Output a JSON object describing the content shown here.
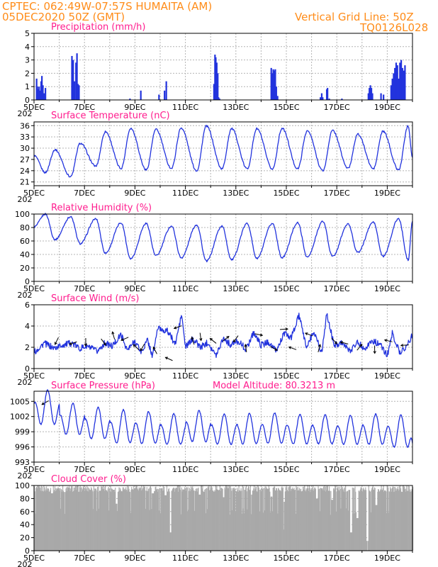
{
  "header": {
    "line1": "CPTEC:   062:49W-07:57S   HUMAITA (AM)",
    "line2": "05DEC2020 50Z (GMT)",
    "grid_note": "Vertical Grid Line: 50Z",
    "model_code": "TQ0126L028"
  },
  "model_altitude": "Model Altitude: 80.3213 m",
  "colors": {
    "line": "#2233dd",
    "bar": "#2233dd",
    "cloud": "#a9a9a9",
    "title": "#ff1d8e",
    "header": "#ff8c19"
  },
  "x_axis": {
    "start": "05DEC2020 00Z",
    "end": "20DEC2020 00Z",
    "day_ticks": [
      "5DEC",
      "7DEC",
      "9DEC",
      "11DEC",
      "13DEC",
      "15DEC",
      "17DEC",
      "19DEC"
    ],
    "year_fragment": "202"
  },
  "chart_data": [
    {
      "type": "bar",
      "title": "Precipitation (mm/h)",
      "ylim": [
        0,
        5
      ],
      "yticks": [
        0,
        1,
        2,
        3,
        4,
        5
      ],
      "series": [
        {
          "values_at": [
            [
              5.1,
              1.6
            ],
            [
              5.13,
              1.0
            ],
            [
              5.17,
              0.8
            ],
            [
              5.2,
              1.0
            ],
            [
              5.24,
              0.7
            ],
            [
              5.28,
              1.4
            ],
            [
              5.31,
              1.8
            ],
            [
              5.35,
              1.1
            ],
            [
              5.39,
              0.5
            ],
            [
              5.45,
              0.9
            ],
            [
              6.5,
              3.3
            ],
            [
              6.55,
              3.0
            ],
            [
              6.6,
              1.4
            ],
            [
              6.66,
              2.8
            ],
            [
              6.7,
              3.5
            ],
            [
              6.74,
              1.2
            ],
            [
              6.78,
              1.1
            ],
            [
              8.8,
              0.1
            ],
            [
              9.23,
              0.7
            ],
            [
              9.95,
              0.4
            ],
            [
              10.17,
              0.7
            ],
            [
              10.24,
              1.4
            ],
            [
              12.13,
              1.2
            ],
            [
              12.17,
              3.4
            ],
            [
              12.2,
              3.2
            ],
            [
              12.24,
              2.8
            ],
            [
              12.28,
              2.0
            ],
            [
              12.31,
              0.2
            ],
            [
              12.35,
              0.1
            ],
            [
              14.4,
              2.4
            ],
            [
              14.44,
              2.0
            ],
            [
              14.48,
              2.3
            ],
            [
              14.52,
              2.2
            ],
            [
              14.56,
              2.3
            ],
            [
              14.6,
              1.0
            ],
            [
              14.65,
              0.3
            ],
            [
              16.35,
              0.2
            ],
            [
              16.4,
              0.5
            ],
            [
              16.44,
              0.2
            ],
            [
              16.6,
              0.8
            ],
            [
              16.63,
              0.9
            ],
            [
              16.7,
              0.1
            ],
            [
              17.2,
              0.1
            ],
            [
              18.25,
              0.5
            ],
            [
              18.29,
              0.9
            ],
            [
              18.33,
              1.1
            ],
            [
              18.37,
              0.9
            ],
            [
              18.41,
              0.5
            ],
            [
              18.75,
              0.5
            ],
            [
              18.85,
              0.4
            ],
            [
              19.15,
              1.1
            ],
            [
              19.2,
              1.6
            ],
            [
              19.25,
              2.0
            ],
            [
              19.3,
              2.4
            ],
            [
              19.35,
              2.8
            ],
            [
              19.4,
              2.6
            ],
            [
              19.45,
              1.6
            ],
            [
              19.5,
              2.8
            ],
            [
              19.55,
              3.0
            ],
            [
              19.6,
              2.4
            ],
            [
              19.65,
              2.2
            ],
            [
              19.7,
              2.6
            ]
          ]
        }
      ]
    },
    {
      "type": "line",
      "title": "Surface Temperature (nC)",
      "ylim": [
        20,
        37
      ],
      "yticks": [
        21,
        24,
        27,
        30,
        33,
        36
      ],
      "series": [
        {
          "day_pattern": "daily cycle: minimum near 11Z, maximum near 20Z",
          "min_values": [
            23.5,
            22.4,
            25.2,
            24.6,
            24.2,
            24.6,
            24.0,
            24.5,
            24.5,
            24.4,
            24.5,
            24.0,
            24.6,
            24.5,
            24.2
          ],
          "max_values": [
            29.6,
            31.3,
            34.4,
            35.3,
            35.0,
            35.4,
            35.9,
            35.2,
            35.2,
            35.3,
            34.6,
            34.7,
            33.7,
            34.5,
            36.0
          ],
          "end_value": 27.6
        }
      ]
    },
    {
      "type": "line",
      "title": "Relative Humidity (%)",
      "ylim": [
        0,
        100
      ],
      "yticks": [
        0,
        20,
        40,
        60,
        80,
        100
      ],
      "series": [
        {
          "day_pattern": "daily cycle: maximum near 11Z, minimum near 20Z",
          "max_values": [
            100,
            96,
            93,
            87,
            86,
            82,
            84,
            82,
            86,
            86,
            87,
            89,
            85,
            88,
            93
          ],
          "min_values": [
            62,
            56,
            42,
            34,
            38,
            35,
            30,
            32,
            34,
            35,
            36,
            37,
            43,
            37,
            32
          ],
          "end_value": 90
        }
      ]
    },
    {
      "type": "line",
      "title": "Surface Wind (m/s)",
      "ylim": [
        0,
        6
      ],
      "yticks": [
        0,
        2,
        4,
        6
      ],
      "series": [
        {
          "values_at": [
            [
              5.0,
              1.5
            ],
            [
              5.4,
              2.4
            ],
            [
              5.8,
              1.9
            ],
            [
              6.1,
              2.2
            ],
            [
              6.5,
              2.4
            ],
            [
              6.8,
              1.9
            ],
            [
              7.1,
              2.1
            ],
            [
              7.5,
              1.6
            ],
            [
              7.8,
              2.4
            ],
            [
              8.1,
              2.1
            ],
            [
              8.45,
              3.2
            ],
            [
              8.7,
              1.7
            ],
            [
              9.0,
              2.6
            ],
            [
              9.25,
              1.5
            ],
            [
              9.5,
              2.7
            ],
            [
              9.7,
              1.1
            ],
            [
              9.9,
              3.8
            ],
            [
              10.3,
              3.5
            ],
            [
              10.6,
              2.3
            ],
            [
              10.85,
              5.1
            ],
            [
              11.0,
              2.0
            ],
            [
              11.3,
              2.8
            ],
            [
              11.6,
              2.0
            ],
            [
              11.9,
              2.5
            ],
            [
              12.2,
              1.2
            ],
            [
              12.5,
              2.9
            ],
            [
              12.8,
              2.2
            ],
            [
              13.1,
              2.6
            ],
            [
              13.4,
              1.8
            ],
            [
              13.7,
              3.4
            ],
            [
              14.0,
              2.2
            ],
            [
              14.3,
              2.5
            ],
            [
              14.6,
              1.6
            ],
            [
              14.9,
              3.3
            ],
            [
              15.2,
              2.9
            ],
            [
              15.5,
              5.0
            ],
            [
              15.8,
              2.0
            ],
            [
              16.1,
              3.5
            ],
            [
              16.4,
              1.5
            ],
            [
              16.6,
              5.1
            ],
            [
              16.9,
              2.2
            ],
            [
              17.2,
              2.5
            ],
            [
              17.5,
              1.6
            ],
            [
              17.8,
              2.5
            ],
            [
              18.1,
              1.9
            ],
            [
              18.4,
              2.6
            ],
            [
              18.7,
              2.3
            ],
            [
              19.0,
              1.2
            ],
            [
              19.2,
              3.3
            ],
            [
              19.5,
              1.5
            ],
            [
              19.8,
              2.2
            ],
            [
              20.0,
              3.2
            ]
          ],
          "arrows_at": [
            [
              5.45,
              4,
              -3.2
            ],
            [
              5.9,
              1,
              2.6
            ],
            [
              6.55,
              -3,
              2.4
            ],
            [
              7.05,
              1,
              2.5
            ],
            [
              7.75,
              -3,
              2.5
            ],
            [
              8.15,
              2,
              3.1
            ],
            [
              8.6,
              -2,
              2.8
            ],
            [
              9.05,
              -3,
              2.0
            ],
            [
              9.3,
              -3,
              2.0
            ],
            [
              9.8,
              -3,
              1.7
            ],
            [
              10.35,
              -3,
              0.9
            ],
            [
              10.7,
              -7,
              3.9
            ],
            [
              11.3,
              -1,
              2.6
            ],
            [
              11.6,
              -2,
              3.0
            ],
            [
              12.1,
              -1,
              2.6
            ],
            [
              12.6,
              1,
              2.8
            ],
            [
              13.0,
              2,
              2.8
            ],
            [
              13.4,
              2,
              1.9
            ],
            [
              13.9,
              -1,
              3.2
            ],
            [
              14.5,
              2,
              1.9
            ],
            [
              14.9,
              0,
              3.7
            ],
            [
              15.25,
              -2,
              1.9
            ],
            [
              15.9,
              -2,
              3.2
            ],
            [
              16.3,
              2,
              1.9
            ],
            [
              16.9,
              3,
              2.6
            ],
            [
              17.3,
              -2,
              2.4
            ],
            [
              17.9,
              2,
              2.0
            ],
            [
              18.5,
              3,
              1.8
            ],
            [
              19.05,
              -4,
              2.6
            ],
            [
              19.7,
              3,
              2.2
            ]
          ]
        }
      ]
    },
    {
      "type": "line",
      "title": "Surface Pressure (hPa)",
      "ylim": [
        993,
        1007
      ],
      "yticks": [
        993,
        996,
        999,
        1002,
        1005
      ],
      "series": [
        {
          "day_pattern": "semidiurnal tide: maxima near 13Z and 01Z, minima near 19Z and 07Z",
          "amplitude_main": [
            5.0,
            4.5,
            4.5,
            4.8,
            4.6,
            4.4,
            4.5,
            4.4,
            4.4,
            4.4,
            4.3,
            4.2,
            4.2,
            4.4,
            4.6
          ],
          "base_values": [
            1003.3,
            1001.0,
            1000.2,
            999.5,
            999.3,
            999.0,
            999.6,
            999.0,
            999.1,
            999.2,
            999.0,
            999.0,
            998.9,
            999.0,
            998.6
          ],
          "end_value": 996.6
        }
      ]
    },
    {
      "type": "bar",
      "title": "Cloud Cover (%)",
      "ylim": [
        0,
        100
      ],
      "yticks": [
        0,
        20,
        40,
        60,
        80,
        100
      ],
      "series": [
        {
          "baseline": 95,
          "dips_at": [
            [
              5.7,
              88
            ],
            [
              6.2,
              90
            ],
            [
              7.6,
              92
            ],
            [
              8.25,
              72
            ],
            [
              9.7,
              88
            ],
            [
              10.2,
              85
            ],
            [
              10.4,
              28
            ],
            [
              10.9,
              94
            ],
            [
              11.55,
              86
            ],
            [
              12.5,
              82
            ],
            [
              13.6,
              86
            ],
            [
              14.4,
              83
            ],
            [
              14.9,
              75
            ],
            [
              16.2,
              80
            ],
            [
              16.8,
              78
            ],
            [
              17.55,
              28
            ],
            [
              17.8,
              50
            ],
            [
              18.2,
              15
            ],
            [
              18.55,
              70
            ]
          ]
        }
      ]
    }
  ]
}
